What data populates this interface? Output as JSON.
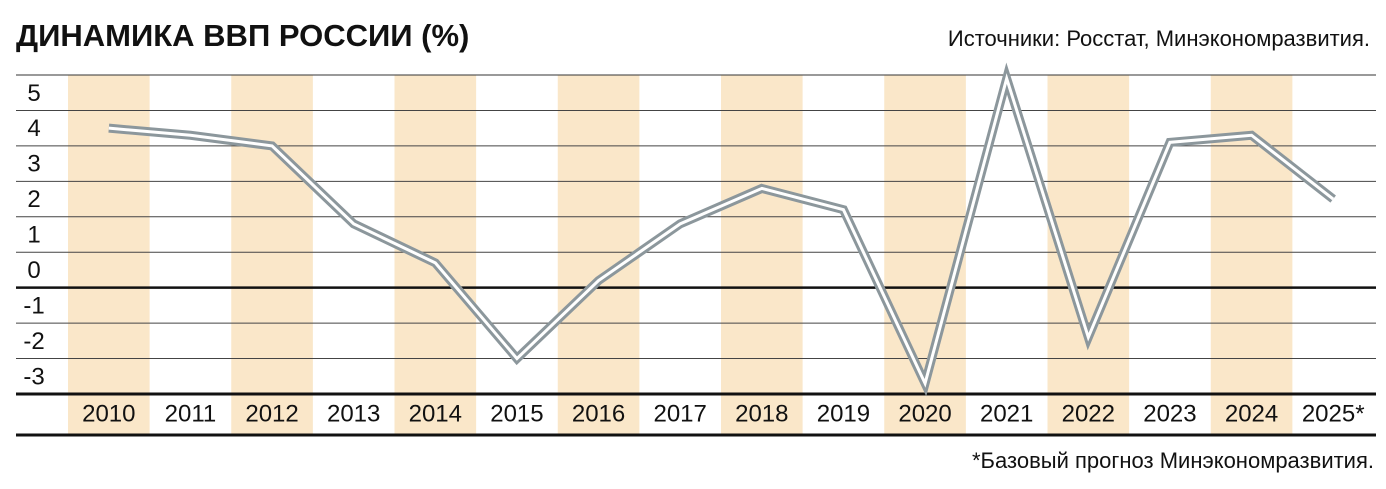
{
  "chart_data": {
    "type": "line",
    "title": "ДИНАМИКА ВВП РОССИИ (%)",
    "source": "Источники: Росстат, Минэкономразвития.",
    "footnote": "*Базовый прогноз Минэкономразвития.",
    "categories": [
      "2010",
      "2011",
      "2012",
      "2013",
      "2014",
      "2015",
      "2016",
      "2017",
      "2018",
      "2019",
      "2020",
      "2021",
      "2022",
      "2023",
      "2024",
      "2025*"
    ],
    "series": [
      {
        "color": "#8c979c",
        "values": [
          4.5,
          4.3,
          4.0,
          1.8,
          0.7,
          -2.0,
          0.2,
          1.8,
          2.8,
          2.2,
          -2.7,
          5.9,
          -1.4,
          4.1,
          4.3,
          2.5
        ]
      }
    ],
    "ylim": [
      -3,
      6
    ],
    "yticks": [
      -3,
      -2,
      -1,
      0,
      1,
      2,
      3,
      4,
      5
    ],
    "grid": true,
    "band_color": "#fae7c9"
  }
}
